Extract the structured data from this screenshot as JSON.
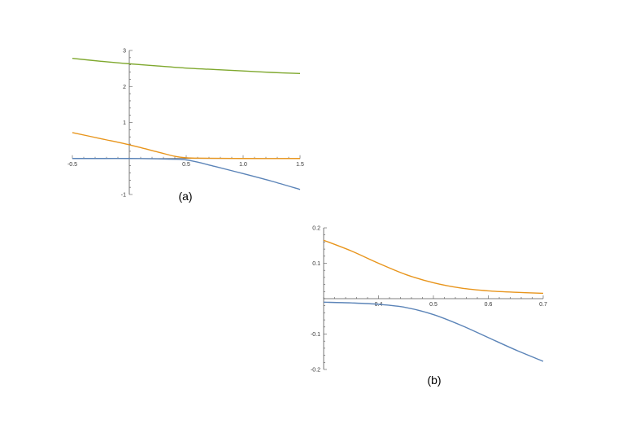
{
  "chart_data": [
    {
      "type": "line",
      "panel_label": "(a)",
      "xlim": [
        -0.5,
        1.5
      ],
      "ylim": [
        -1,
        3
      ],
      "x_ticks": [
        "-0.5",
        "0.5",
        "1.0",
        "1.5"
      ],
      "y_ticks": [
        "-1",
        "1",
        "2",
        "3"
      ],
      "x_tick_values": [
        -0.5,
        0.5,
        1.0,
        1.5
      ],
      "y_tick_values": [
        -1,
        1,
        2,
        3
      ],
      "series": [
        {
          "color": "#7fa82e",
          "x": [
            -0.5,
            -0.25,
            0,
            0.25,
            0.5,
            0.75,
            1.0,
            1.25,
            1.5
          ],
          "y": [
            2.78,
            2.7,
            2.63,
            2.57,
            2.51,
            2.47,
            2.43,
            2.39,
            2.36
          ]
        },
        {
          "color": "#e8951c",
          "x": [
            -0.5,
            -0.25,
            0,
            0.25,
            0.4,
            0.5,
            0.6,
            1.0,
            1.5
          ],
          "y": [
            0.72,
            0.55,
            0.38,
            0.18,
            0.06,
            0.02,
            0.01,
            0.0,
            0.0
          ]
        },
        {
          "color": "#5b84b8",
          "x": [
            -0.5,
            -0.25,
            0,
            0.25,
            0.4,
            0.5,
            0.6,
            0.75,
            1.0,
            1.25,
            1.5
          ],
          "y": [
            0.0,
            0.0,
            0.0,
            -0.01,
            -0.02,
            -0.04,
            -0.1,
            -0.22,
            -0.42,
            -0.63,
            -0.86
          ]
        }
      ]
    },
    {
      "type": "line",
      "panel_label": "(b)",
      "xlim": [
        0.3,
        0.7
      ],
      "ylim": [
        -0.2,
        0.2
      ],
      "x_ticks": [
        "0.4",
        "0.5",
        "0.6",
        "0.7"
      ],
      "y_ticks": [
        "0.2",
        "0.1",
        "-0.1",
        "-0.2"
      ],
      "x_tick_values": [
        0.4,
        0.5,
        0.6,
        0.7
      ],
      "y_tick_values": [
        0.2,
        0.1,
        -0.1,
        -0.2
      ],
      "series": [
        {
          "color": "#e8951c",
          "x": [
            0.3,
            0.35,
            0.4,
            0.45,
            0.5,
            0.55,
            0.6,
            0.65,
            0.7
          ],
          "y": [
            0.165,
            0.135,
            0.1,
            0.068,
            0.045,
            0.03,
            0.022,
            0.018,
            0.015
          ]
        },
        {
          "color": "#5b84b8",
          "x": [
            0.3,
            0.35,
            0.4,
            0.45,
            0.5,
            0.55,
            0.6,
            0.65,
            0.7
          ],
          "y": [
            -0.01,
            -0.012,
            -0.016,
            -0.025,
            -0.045,
            -0.075,
            -0.11,
            -0.145,
            -0.177
          ]
        }
      ]
    }
  ]
}
